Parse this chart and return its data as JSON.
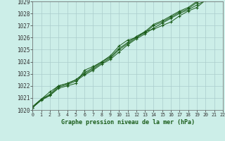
{
  "title": "Graphe pression niveau de la mer (hPa)",
  "background_color": "#cceee8",
  "grid_color": "#aacccc",
  "line_color": "#1a5c1a",
  "xlim": [
    0,
    22
  ],
  "ylim": [
    1020,
    1029
  ],
  "xticks": [
    0,
    1,
    2,
    3,
    4,
    5,
    6,
    7,
    8,
    9,
    10,
    11,
    12,
    13,
    14,
    15,
    16,
    17,
    18,
    19,
    20,
    21,
    22
  ],
  "yticks": [
    1020,
    1021,
    1022,
    1023,
    1024,
    1025,
    1026,
    1027,
    1028,
    1029
  ],
  "series": [
    [
      1020.2,
      1020.8,
      1021.2,
      1021.8,
      1022.0,
      1022.2,
      1023.3,
      1023.6,
      1024.0,
      1024.5,
      1025.3,
      1025.8,
      1026.0,
      1026.5,
      1026.7,
      1027.0,
      1027.3,
      1027.8,
      1028.2,
      1028.5,
      1029.1,
      1029.3,
      1029.2
    ],
    [
      1020.2,
      1020.9,
      1021.5,
      1022.0,
      1022.2,
      1022.5,
      1023.0,
      1023.4,
      1023.9,
      1024.3,
      1025.0,
      1025.5,
      1026.0,
      1026.4,
      1027.0,
      1027.3,
      1027.7,
      1028.1,
      1028.4,
      1028.9,
      1029.2,
      1029.3,
      1029.3
    ],
    [
      1020.2,
      1020.9,
      1021.2,
      1021.9,
      1022.1,
      1022.4,
      1022.9,
      1023.3,
      1023.8,
      1024.2,
      1024.8,
      1025.4,
      1025.9,
      1026.3,
      1026.8,
      1027.2,
      1027.6,
      1028.0,
      1028.3,
      1028.7,
      1029.1,
      1029.2,
      1029.2
    ],
    [
      1020.3,
      1020.9,
      1021.3,
      1022.0,
      1022.2,
      1022.5,
      1023.1,
      1023.5,
      1024.0,
      1024.4,
      1025.1,
      1025.6,
      1026.1,
      1026.5,
      1027.1,
      1027.4,
      1027.8,
      1028.2,
      1028.5,
      1029.0,
      1029.3,
      1029.4,
      1029.4
    ]
  ]
}
